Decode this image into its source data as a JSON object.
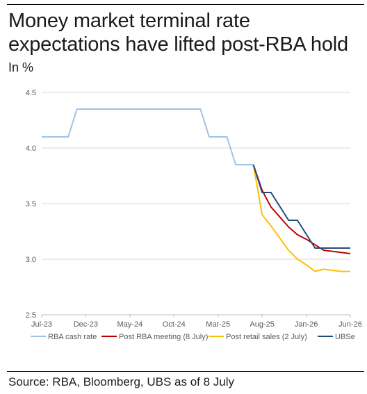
{
  "header": {
    "title_line1": "Money market terminal rate",
    "title_line2": "expectations have lifted post-RBA hold",
    "subtitle": "In %"
  },
  "footer": {
    "source": "Source: RBA, Bloomberg, UBS as of 8 July"
  },
  "chart_data": {
    "type": "line",
    "title": "Money market terminal rate expectations have lifted post-RBA hold",
    "subtitle": "In %",
    "xlabel": "",
    "ylabel": "",
    "x_ticks": [
      "Jul-23",
      "Dec-23",
      "May-24",
      "Oct-24",
      "Mar-25",
      "Aug-25",
      "Jan-26",
      "Jun-26"
    ],
    "y_ticks": [
      "2.5",
      "3.0",
      "3.5",
      "4.0",
      "4.5"
    ],
    "ylim": [
      2.5,
      4.5
    ],
    "xlim": [
      "2023-07",
      "2026-06"
    ],
    "grid": "horizontal",
    "legend_position": "bottom",
    "series": [
      {
        "name": "RBA cash rate",
        "color": "#9dc3e6",
        "points": [
          [
            "2023-07",
            4.1
          ],
          [
            "2023-10",
            4.1
          ],
          [
            "2023-11",
            4.35
          ],
          [
            "2024-01",
            4.35
          ],
          [
            "2024-06",
            4.35
          ],
          [
            "2024-11",
            4.35
          ],
          [
            "2025-01",
            4.35
          ],
          [
            "2025-02",
            4.1
          ],
          [
            "2025-04",
            4.1
          ],
          [
            "2025-05",
            3.85
          ],
          [
            "2025-07",
            3.85
          ]
        ]
      },
      {
        "name": "Post RBA meeting (8 July)",
        "color": "#c00000",
        "points": [
          [
            "2025-07",
            3.85
          ],
          [
            "2025-08",
            3.62
          ],
          [
            "2025-09",
            3.47
          ],
          [
            "2025-10",
            3.38
          ],
          [
            "2025-11",
            3.29
          ],
          [
            "2025-12",
            3.22
          ],
          [
            "2026-01",
            3.18
          ],
          [
            "2026-02",
            3.13
          ],
          [
            "2026-03",
            3.08
          ],
          [
            "2026-04",
            3.07
          ],
          [
            "2026-05",
            3.06
          ],
          [
            "2026-06",
            3.05
          ]
        ]
      },
      {
        "name": "Post retail sales (2 July)",
        "color": "#ffc000",
        "points": [
          [
            "2025-07",
            3.85
          ],
          [
            "2025-08",
            3.4
          ],
          [
            "2025-09",
            3.3
          ],
          [
            "2025-10",
            3.19
          ],
          [
            "2025-11",
            3.08
          ],
          [
            "2025-12",
            3.0
          ],
          [
            "2026-01",
            2.95
          ],
          [
            "2026-02",
            2.89
          ],
          [
            "2026-03",
            2.91
          ],
          [
            "2026-04",
            2.9
          ],
          [
            "2026-05",
            2.89
          ],
          [
            "2026-06",
            2.89
          ]
        ]
      },
      {
        "name": "UBSe",
        "color": "#1f4e79",
        "points": [
          [
            "2025-07",
            3.85
          ],
          [
            "2025-08",
            3.6
          ],
          [
            "2025-09",
            3.6
          ],
          [
            "2025-11",
            3.35
          ],
          [
            "2025-12",
            3.35
          ],
          [
            "2026-02",
            3.1
          ],
          [
            "2026-06",
            3.1
          ]
        ]
      }
    ]
  }
}
